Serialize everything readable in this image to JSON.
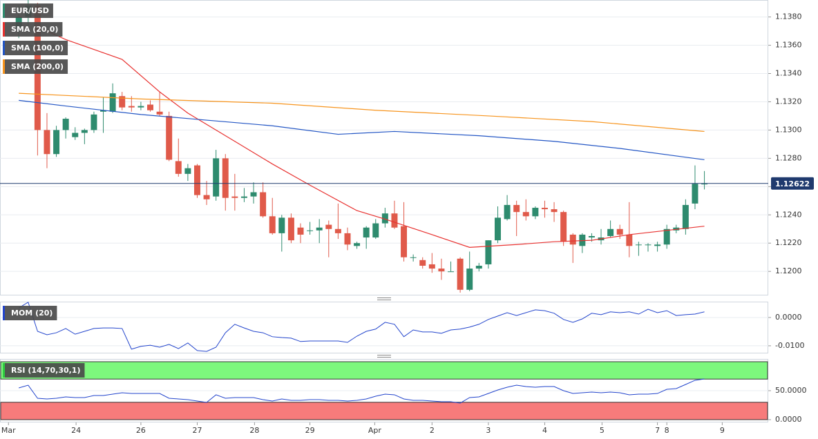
{
  "chart_data": [
    {
      "type": "candlestick",
      "symbol": "EUR/USD",
      "symbol_color": "#2e8b6e",
      "up_color": "#2e8b6e",
      "down_color": "#e05a4a",
      "x": [
        0,
        1,
        2,
        3,
        4,
        5,
        6,
        7,
        8,
        9,
        10,
        11,
        12,
        13,
        14,
        15,
        16,
        17,
        18,
        19,
        20,
        21,
        22,
        23,
        24,
        25,
        26,
        27,
        28,
        29,
        30,
        31,
        32,
        33,
        34,
        35,
        36,
        37,
        38,
        39,
        40,
        41,
        42,
        43,
        44,
        45,
        46,
        47,
        48,
        49,
        50,
        51,
        52,
        53,
        54,
        55,
        56,
        57,
        58,
        59,
        60,
        61,
        62,
        63,
        64,
        65,
        66,
        67,
        68,
        69,
        70,
        71,
        72,
        73
      ],
      "open": [
        1.1372,
        1.138,
        1.1388,
        1.13,
        1.1283,
        1.13,
        1.1295,
        1.1298,
        1.13,
        1.1313,
        1.1313,
        1.1324,
        1.1317,
        1.1316,
        1.1318,
        1.1313,
        1.131,
        1.1278,
        1.1269,
        1.1275,
        1.1254,
        1.1253,
        1.128,
        1.1253,
        1.1252,
        1.1253,
        1.1256,
        1.1239,
        1.1227,
        1.1238,
        1.1231,
        1.1229,
        1.1229,
        1.1233,
        1.123,
        1.1227,
        1.1218,
        1.1224,
        1.1224,
        1.1234,
        1.1241,
        1.1232,
        1.121,
        1.1208,
        1.1205,
        1.1202,
        1.12,
        1.1209,
        1.1187,
        1.1202,
        1.1205,
        1.1222,
        1.1237,
        1.1247,
        1.1242,
        1.1239,
        1.1245,
        1.1244,
        1.1242,
        1.1226,
        1.1218,
        1.1224,
        1.1222,
        1.1225,
        1.123,
        1.1226,
        1.1219,
        1.1219,
        1.1218,
        1.1219,
        1.1229,
        1.123,
        1.1248,
        1.1262
      ],
      "high": [
        1.1388,
        1.1392,
        1.139,
        1.1312,
        1.1303,
        1.1309,
        1.1302,
        1.1301,
        1.1313,
        1.1323,
        1.1333,
        1.1327,
        1.1324,
        1.132,
        1.1321,
        1.1327,
        1.1313,
        1.1294,
        1.1276,
        1.1276,
        1.1264,
        1.1286,
        1.1283,
        1.1269,
        1.1259,
        1.1263,
        1.1263,
        1.1252,
        1.124,
        1.1241,
        1.1234,
        1.1235,
        1.1237,
        1.1236,
        1.1248,
        1.1231,
        1.1221,
        1.1232,
        1.1237,
        1.1245,
        1.125,
        1.1249,
        1.1212,
        1.121,
        1.1213,
        1.1209,
        1.1207,
        1.121,
        1.1214,
        1.1206,
        1.1222,
        1.1246,
        1.1254,
        1.125,
        1.1251,
        1.1246,
        1.125,
        1.1249,
        1.1243,
        1.1227,
        1.1227,
        1.1227,
        1.123,
        1.1236,
        1.1233,
        1.1249,
        1.1221,
        1.122,
        1.1221,
        1.1233,
        1.1233,
        1.1251,
        1.1275,
        1.1271
      ],
      "low": [
        1.1365,
        1.1372,
        1.1282,
        1.1273,
        1.1281,
        1.1294,
        1.1293,
        1.129,
        1.1298,
        1.1298,
        1.1312,
        1.1314,
        1.1313,
        1.1314,
        1.1313,
        1.131,
        1.1278,
        1.1267,
        1.1264,
        1.1252,
        1.1247,
        1.125,
        1.1243,
        1.1243,
        1.1249,
        1.1248,
        1.1238,
        1.1226,
        1.1214,
        1.122,
        1.122,
        1.1226,
        1.122,
        1.121,
        1.1223,
        1.1215,
        1.1216,
        1.1216,
        1.1223,
        1.1231,
        1.123,
        1.1207,
        1.1207,
        1.1202,
        1.1199,
        1.1194,
        1.12,
        1.1185,
        1.1186,
        1.12,
        1.1202,
        1.122,
        1.1236,
        1.1225,
        1.1236,
        1.1237,
        1.1238,
        1.1235,
        1.1218,
        1.1206,
        1.1213,
        1.1221,
        1.1219,
        1.1224,
        1.1223,
        1.121,
        1.1211,
        1.1214,
        1.1214,
        1.1216,
        1.1227,
        1.1226,
        1.1244,
        1.1258
      ],
      "close": [
        1.138,
        1.1388,
        1.13,
        1.1283,
        1.13,
        1.1308,
        1.1298,
        1.13,
        1.1311,
        1.1314,
        1.1326,
        1.1316,
        1.1316,
        1.1317,
        1.1314,
        1.1311,
        1.1279,
        1.1269,
        1.1273,
        1.1254,
        1.1251,
        1.128,
        1.1252,
        1.1252,
        1.1253,
        1.1256,
        1.1239,
        1.1227,
        1.1238,
        1.1222,
        1.1226,
        1.1229,
        1.1231,
        1.123,
        1.1227,
        1.1219,
        1.122,
        1.1231,
        1.1234,
        1.1241,
        1.1231,
        1.121,
        1.121,
        1.1204,
        1.1202,
        1.12,
        1.12,
        1.1187,
        1.1202,
        1.1204,
        1.1222,
        1.1238,
        1.1247,
        1.1242,
        1.1239,
        1.1245,
        1.1244,
        1.1242,
        1.1221,
        1.1219,
        1.1226,
        1.1225,
        1.1224,
        1.123,
        1.1226,
        1.1218,
        1.1219,
        1.1219,
        1.1219,
        1.123,
        1.1231,
        1.1247,
        1.1262,
        1.1262
      ],
      "series": [
        {
          "name": "SMA (20,0)",
          "color": "#e8312f",
          "x": [
            2,
            5,
            11,
            15,
            18,
            23,
            27,
            31,
            36,
            39,
            44,
            48,
            53,
            57,
            61,
            65,
            69,
            73
          ],
          "values": [
            1.1373,
            1.1364,
            1.135,
            1.1327,
            1.1312,
            1.1292,
            1.1276,
            1.1261,
            1.1243,
            1.1237,
            1.1226,
            1.1217,
            1.1219,
            1.1221,
            1.1222,
            1.1226,
            1.1229,
            1.1232
          ]
        },
        {
          "name": "SMA (100,0)",
          "color": "#2255c4",
          "x": [
            0,
            5,
            13,
            20,
            27,
            34,
            40,
            49,
            57,
            64,
            73
          ],
          "values": [
            1.1321,
            1.1317,
            1.1311,
            1.1307,
            1.1303,
            1.1297,
            1.1299,
            1.1296,
            1.1292,
            1.1287,
            1.1279
          ]
        },
        {
          "name": "SMA (200,0)",
          "color": "#f7941d",
          "x": [
            0,
            13,
            27,
            38,
            50,
            61,
            73
          ],
          "values": [
            1.1326,
            1.1322,
            1.1319,
            1.1314,
            1.131,
            1.1306,
            1.1299
          ]
        }
      ],
      "last_price": 1.12622,
      "last_price_color": "#1f3a6e",
      "xlim": [
        -2,
        79.8
      ],
      "ylim": [
        1.1183,
        1.1392
      ],
      "yticks": [
        {
          "value": 1.12,
          "label": "1.1200"
        },
        {
          "value": 1.122,
          "label": "1.1220"
        },
        {
          "value": 1.124,
          "label": "1.1240"
        },
        {
          "value": 1.126,
          "label": "1.1260"
        },
        {
          "value": 1.128,
          "label": "1.1280"
        },
        {
          "value": 1.13,
          "label": "1.1300"
        },
        {
          "value": 1.132,
          "label": "1.1320"
        },
        {
          "value": 1.134,
          "label": "1.1340"
        },
        {
          "value": 1.136,
          "label": "1.1360"
        },
        {
          "value": 1.138,
          "label": "1.1380"
        }
      ],
      "grid": true
    },
    {
      "type": "line",
      "title": "MOM (20)",
      "color": "#2244cc",
      "x": [
        0,
        1,
        2,
        3,
        4,
        5,
        6,
        7,
        8,
        9,
        10,
        11,
        12,
        13,
        14,
        15,
        16,
        17,
        18,
        19,
        20,
        21,
        22,
        23,
        24,
        25,
        26,
        27,
        28,
        29,
        30,
        31,
        32,
        33,
        34,
        35,
        36,
        37,
        38,
        39,
        40,
        41,
        42,
        43,
        44,
        45,
        46,
        47,
        48,
        49,
        50,
        51,
        52,
        53,
        54,
        55,
        56,
        57,
        58,
        59,
        60,
        61,
        62,
        63,
        64,
        65,
        66,
        67,
        68,
        69,
        70,
        71,
        72,
        73
      ],
      "values": [
        0.0034,
        0.0054,
        -0.0049,
        -0.0061,
        -0.0054,
        -0.0039,
        -0.0059,
        -0.0049,
        -0.0039,
        -0.0037,
        -0.0037,
        -0.0039,
        -0.0112,
        -0.0102,
        -0.0098,
        -0.0105,
        -0.0095,
        -0.011,
        -0.009,
        -0.0117,
        -0.012,
        -0.0105,
        -0.0054,
        -0.0024,
        -0.0037,
        -0.0049,
        -0.0054,
        -0.0068,
        -0.0071,
        -0.0073,
        -0.0085,
        -0.0083,
        -0.0083,
        -0.0083,
        -0.0083,
        -0.0088,
        -0.0066,
        -0.0049,
        -0.0041,
        -0.0017,
        -0.0024,
        -0.0068,
        -0.0044,
        -0.0051,
        -0.0051,
        -0.0056,
        -0.0044,
        -0.0041,
        -0.0034,
        -0.0024,
        -0.0007,
        0.0005,
        0.0017,
        0.0007,
        0.0017,
        0.0027,
        0.0024,
        0.0015,
        -0.0007,
        -0.0017,
        -0.0005,
        0.0015,
        0.001,
        0.002,
        0.0017,
        0.002,
        0.0012,
        0.0029,
        0.0017,
        0.0024,
        0.0007,
        0.001,
        0.0012,
        0.002
      ],
      "xlim": [
        -2,
        79.8
      ],
      "ylim": [
        -0.0127,
        0.0056
      ],
      "yticks": [
        {
          "value": -0.01,
          "label": "-0.0100"
        },
        {
          "value": 0,
          "label": "0.0000"
        }
      ],
      "grid": true
    },
    {
      "type": "line",
      "title": "RSI (14,70,30,1)",
      "color": "#2244cc",
      "legend_color": "#2ecc40",
      "bands": [
        {
          "from": 70,
          "to": 100,
          "color": "#7df77d"
        },
        {
          "from": 0,
          "to": 30,
          "color": "#f77b7b"
        }
      ],
      "x": [
        0,
        1,
        2,
        3,
        4,
        5,
        6,
        7,
        8,
        9,
        10,
        11,
        12,
        13,
        14,
        15,
        16,
        17,
        18,
        19,
        20,
        21,
        22,
        23,
        24,
        25,
        26,
        27,
        28,
        29,
        30,
        31,
        32,
        33,
        34,
        35,
        36,
        37,
        38,
        39,
        40,
        41,
        42,
        43,
        44,
        45,
        46,
        47,
        48,
        49,
        50,
        51,
        52,
        53,
        54,
        55,
        56,
        57,
        58,
        59,
        60,
        61,
        62,
        63,
        64,
        65,
        66,
        67,
        68,
        69,
        70,
        71,
        72,
        73
      ],
      "values": [
        54.8,
        59.5,
        36.9,
        35.7,
        36.9,
        39.3,
        38.1,
        38.1,
        41.7,
        41.7,
        44.0,
        46.4,
        45.2,
        45.2,
        45.2,
        45.2,
        36.9,
        35.7,
        34.5,
        32.1,
        29.8,
        42.9,
        36.9,
        38.1,
        38.1,
        38.1,
        34.5,
        32.1,
        35.7,
        33.3,
        33.3,
        34.5,
        34.5,
        33.3,
        33.3,
        32.1,
        33.3,
        35.7,
        40.5,
        44.0,
        42.9,
        35.7,
        33.3,
        33.3,
        32.1,
        31.0,
        31.0,
        28.6,
        38.1,
        39.3,
        45.2,
        51.2,
        56.0,
        59.5,
        57.1,
        56.0,
        57.1,
        57.1,
        50.0,
        45.2,
        46.4,
        47.6,
        46.4,
        47.6,
        46.4,
        42.9,
        44.0,
        44.0,
        45.2,
        52.4,
        53.6,
        60.7,
        67.9,
        70.2
      ],
      "xlim": [
        -2,
        79.8
      ],
      "ylim": [
        -4.8,
        104.8
      ],
      "yticks": [
        {
          "value": 0,
          "label": "0.0000"
        },
        {
          "value": 50,
          "label": "50.0000"
        }
      ],
      "xticks": [
        {
          "value": -1.1,
          "label": "Mar"
        },
        {
          "value": 6.1,
          "label": "24"
        },
        {
          "value": 13.0,
          "label": "26"
        },
        {
          "value": 19.0,
          "label": "27"
        },
        {
          "value": 25.1,
          "label": "28"
        },
        {
          "value": 31.0,
          "label": "29"
        },
        {
          "value": 37.9,
          "label": "Apr"
        },
        {
          "value": 44.0,
          "label": "2"
        },
        {
          "value": 50.0,
          "label": "3"
        },
        {
          "value": 56.0,
          "label": "4"
        },
        {
          "value": 62.1,
          "label": "5"
        },
        {
          "value": 68.0,
          "label": "7"
        },
        {
          "value": 69.0,
          "label": "8"
        },
        {
          "value": 74.9,
          "label": "9"
        }
      ],
      "grid": true
    }
  ]
}
